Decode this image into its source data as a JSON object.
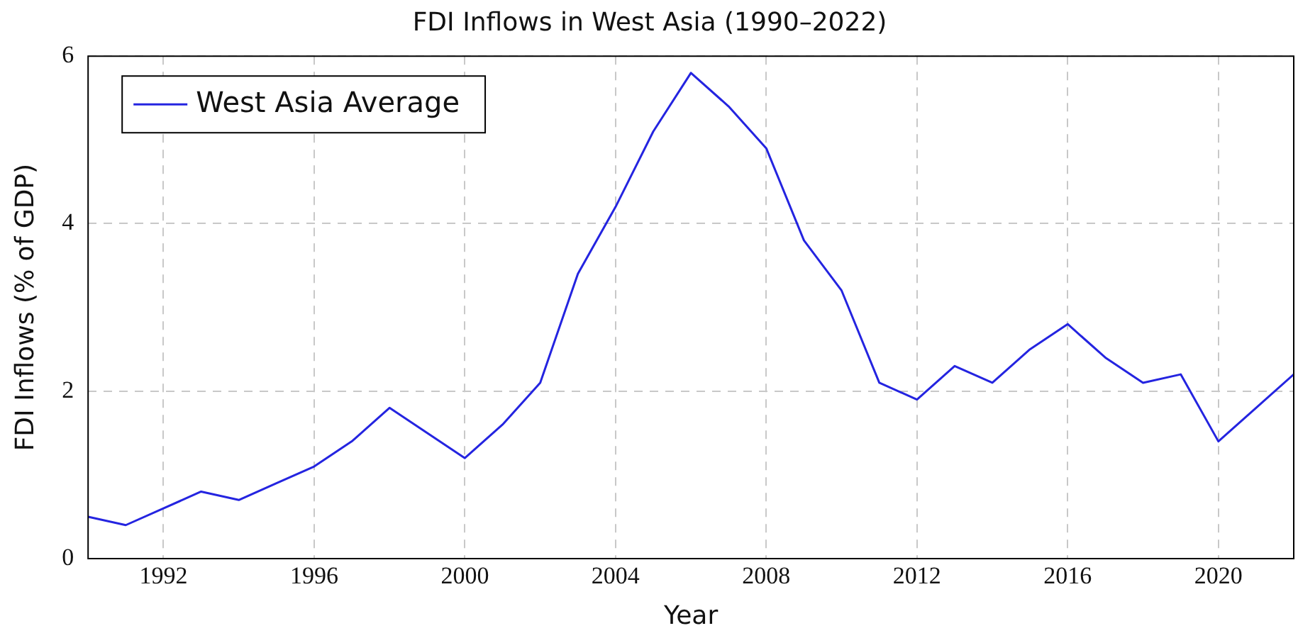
{
  "chart_data": {
    "type": "line",
    "title": "FDI Inflows in West Asia (1990–2022)",
    "xlabel": "Year",
    "ylabel": "FDI Inflows (% of GDP)",
    "x": [
      1990,
      1991,
      1992,
      1993,
      1994,
      1995,
      1996,
      1997,
      1998,
      1999,
      2000,
      2001,
      2002,
      2003,
      2004,
      2005,
      2006,
      2007,
      2008,
      2009,
      2010,
      2011,
      2012,
      2013,
      2014,
      2015,
      2016,
      2017,
      2018,
      2019,
      2020,
      2021,
      2022
    ],
    "series": [
      {
        "name": "West Asia Average",
        "color": "#2424e0",
        "values": [
          0.5,
          0.4,
          0.6,
          0.8,
          0.7,
          0.9,
          1.1,
          1.4,
          1.8,
          1.5,
          1.2,
          1.6,
          2.1,
          3.4,
          4.2,
          5.1,
          5.8,
          5.4,
          4.9,
          3.8,
          3.2,
          2.1,
          1.9,
          2.3,
          2.1,
          2.5,
          2.8,
          2.4,
          2.1,
          2.2,
          1.4,
          1.8,
          2.2
        ]
      }
    ],
    "xlim": [
      1990,
      2022
    ],
    "xticks": [
      1992,
      1996,
      2000,
      2004,
      2008,
      2012,
      2016,
      2020
    ],
    "ylim": [
      0,
      6
    ],
    "yticks": [
      0,
      2,
      4,
      6
    ],
    "grid": true,
    "legend": "top left",
    "marker": "none",
    "line_style": "solid"
  }
}
